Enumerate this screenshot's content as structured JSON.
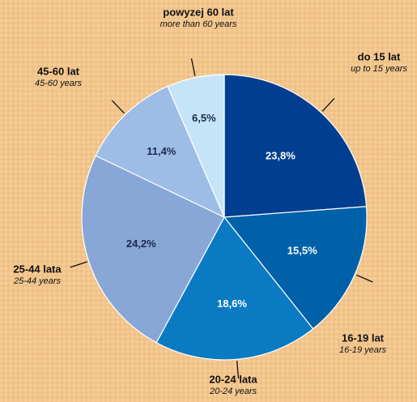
{
  "chart_data": {
    "type": "pie",
    "categories": [
      "do 15 lat",
      "16-19 lat",
      "20-24 lata",
      "25-44 lata",
      "45-60 lat",
      "powyzej 60 lat"
    ],
    "categories_en": [
      "up to 15 years",
      "16-19  years",
      "20-24  years",
      "25-44  years",
      "45-60 years",
      "more than 60 years"
    ],
    "values": [
      23.8,
      15.5,
      18.6,
      24.2,
      11.4,
      6.5
    ],
    "value_labels": [
      "23,8%",
      "15,5%",
      "18,6%",
      "24,2%",
      "11,4%",
      "6,5%"
    ],
    "colors": [
      "#003f8f",
      "#0061a9",
      "#0a7ac2",
      "#88a6d6",
      "#9ebde6",
      "#c6e4f8"
    ],
    "value_label_colors": [
      "#ffffff",
      "#ffffff",
      "#ffffff",
      "#1a2a50",
      "#1a2a50",
      "#1a2a50"
    ]
  }
}
